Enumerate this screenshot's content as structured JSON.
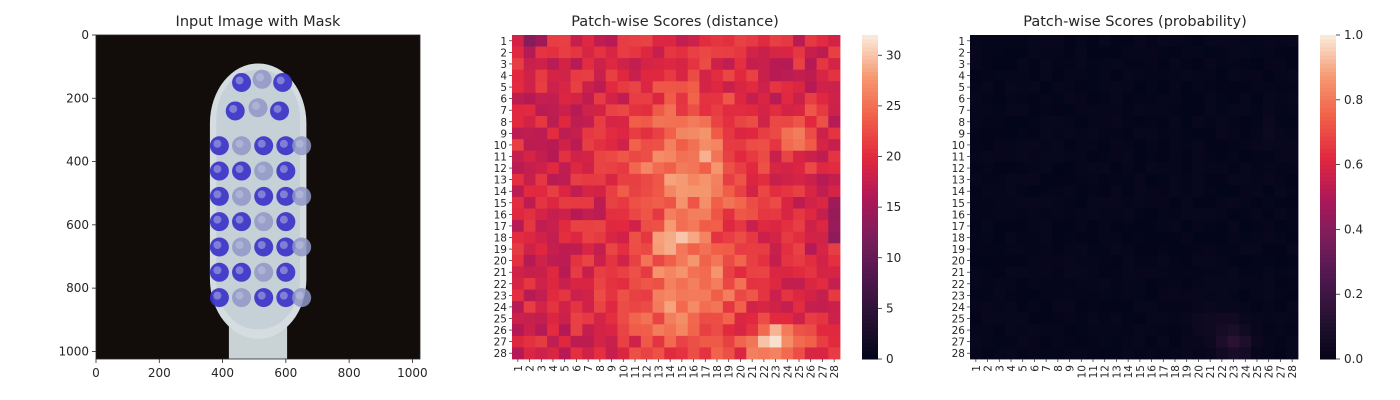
{
  "chart_data": [
    {
      "type": "image",
      "title": "Input Image with Mask",
      "xlim": [
        0,
        1024
      ],
      "ylim": [
        1024,
        0
      ],
      "x_ticks": [
        0,
        200,
        400,
        600,
        800,
        1000
      ],
      "y_ticks": [
        0,
        200,
        400,
        600,
        800,
        1000
      ],
      "background_color": "#120d0b",
      "mask_color": "#3a32c8"
    },
    {
      "type": "heatmap",
      "title": "Patch-wise Scores (distance)",
      "grid_size": 28,
      "x_ticks": [
        "1",
        "2",
        "3",
        "4",
        "5",
        "6",
        "7",
        "8",
        "9",
        "10",
        "11",
        "12",
        "13",
        "14",
        "15",
        "16",
        "17",
        "18",
        "19",
        "20",
        "21",
        "22",
        "23",
        "24",
        "25",
        "26",
        "27",
        "28"
      ],
      "y_ticks": [
        "1",
        "2",
        "3",
        "4",
        "5",
        "6",
        "7",
        "8",
        "9",
        "10",
        "11",
        "12",
        "13",
        "14",
        "15",
        "16",
        "17",
        "18",
        "19",
        "20",
        "21",
        "22",
        "23",
        "24",
        "25",
        "26",
        "27",
        "28"
      ],
      "colorbar": {
        "min": 0,
        "max": 32,
        "ticks": [
          0,
          5,
          10,
          15,
          20,
          25,
          30
        ]
      },
      "colormap": "rocket",
      "background_level": 19,
      "hotspots": [
        {
          "cx": 15.5,
          "cy": 12,
          "rx": 5.5,
          "ry": 7,
          "value": 27
        },
        {
          "cx": 15.5,
          "cy": 22,
          "rx": 5.5,
          "ry": 7,
          "value": 27
        },
        {
          "cx": 14.5,
          "cy": 18,
          "rx": 3,
          "ry": 3,
          "value": 29
        },
        {
          "cx": 17,
          "cy": 10,
          "rx": 2,
          "ry": 3,
          "value": 29
        },
        {
          "cx": 23,
          "cy": 27,
          "rx": 3,
          "ry": 1.6,
          "value": 31
        },
        {
          "cx": 25,
          "cy": 9,
          "rx": 2,
          "ry": 2.5,
          "value": 24
        }
      ]
    },
    {
      "type": "heatmap",
      "title": "Patch-wise Scores (probability)",
      "grid_size": 28,
      "x_ticks": [
        "1",
        "2",
        "3",
        "4",
        "5",
        "6",
        "7",
        "8",
        "9",
        "10",
        "11",
        "12",
        "13",
        "14",
        "15",
        "16",
        "17",
        "18",
        "19",
        "20",
        "21",
        "22",
        "23",
        "24",
        "25",
        "26",
        "27",
        "28"
      ],
      "y_ticks": [
        "1",
        "2",
        "3",
        "4",
        "5",
        "6",
        "7",
        "8",
        "9",
        "10",
        "11",
        "12",
        "13",
        "14",
        "15",
        "16",
        "17",
        "18",
        "19",
        "20",
        "21",
        "22",
        "23",
        "24",
        "25",
        "26",
        "27",
        "28"
      ],
      "colorbar": {
        "min": 0.0,
        "max": 1.0,
        "ticks": [
          "0.0",
          "0.2",
          "0.4",
          "0.6",
          "0.8",
          "1.0"
        ]
      },
      "colormap": "rocket",
      "background_level": 0.01,
      "hotspots": [
        {
          "cx": 23,
          "cy": 27,
          "rx": 1.5,
          "ry": 1.5,
          "value": 0.14
        },
        {
          "cx": 22,
          "cy": 26,
          "rx": 2.5,
          "ry": 2,
          "value": 0.06
        },
        {
          "cx": 26,
          "cy": 9,
          "rx": 1,
          "ry": 1,
          "value": 0.04
        }
      ]
    }
  ]
}
